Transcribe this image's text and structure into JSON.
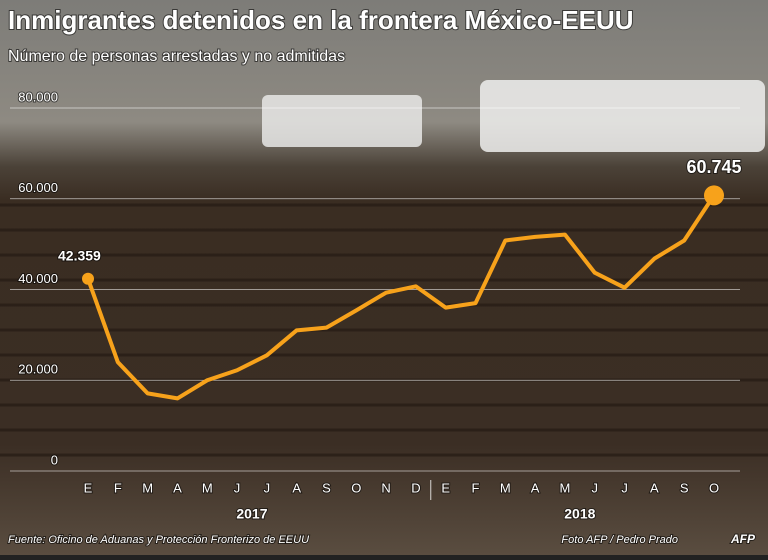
{
  "chart_data": {
    "type": "line",
    "title": "Inmigrantes detenidos en la frontera México-EEUU",
    "subtitle": "Número de personas arrestadas y no admitidas",
    "categories": [
      "E",
      "F",
      "M",
      "A",
      "M",
      "J",
      "J",
      "A",
      "S",
      "O",
      "N",
      "D",
      "E",
      "F",
      "M",
      "A",
      "M",
      "J",
      "J",
      "A",
      "S",
      "O"
    ],
    "years": [
      "2017",
      "2018"
    ],
    "values": [
      42359,
      24000,
      17100,
      16000,
      20000,
      22200,
      25500,
      31000,
      31600,
      35400,
      39300,
      40700,
      36000,
      37000,
      50800,
      51600,
      52100,
      43700,
      40400,
      46800,
      50800,
      60745
    ],
    "value_labels": [
      "42.359",
      null,
      null,
      null,
      null,
      null,
      null,
      null,
      null,
      null,
      null,
      null,
      null,
      null,
      null,
      null,
      null,
      null,
      null,
      null,
      null,
      "60.745"
    ],
    "color": "#f7a21b",
    "ylim": [
      0,
      80000
    ],
    "yticks": [
      0,
      {
        "value": 20000,
        "label": "20.000"
      },
      {
        "value": 40000,
        "label": "40.000"
      },
      {
        "value": 60000,
        "label": "60.000"
      },
      {
        "value": 80000,
        "label": "80.000"
      }
    ],
    "grid": true,
    "source": "Fuente: Oficino de Aduanas y Protección Fronterizo de EEUU",
    "credit": "Foto AFP / Pedro Prado",
    "logo": "AFP"
  }
}
